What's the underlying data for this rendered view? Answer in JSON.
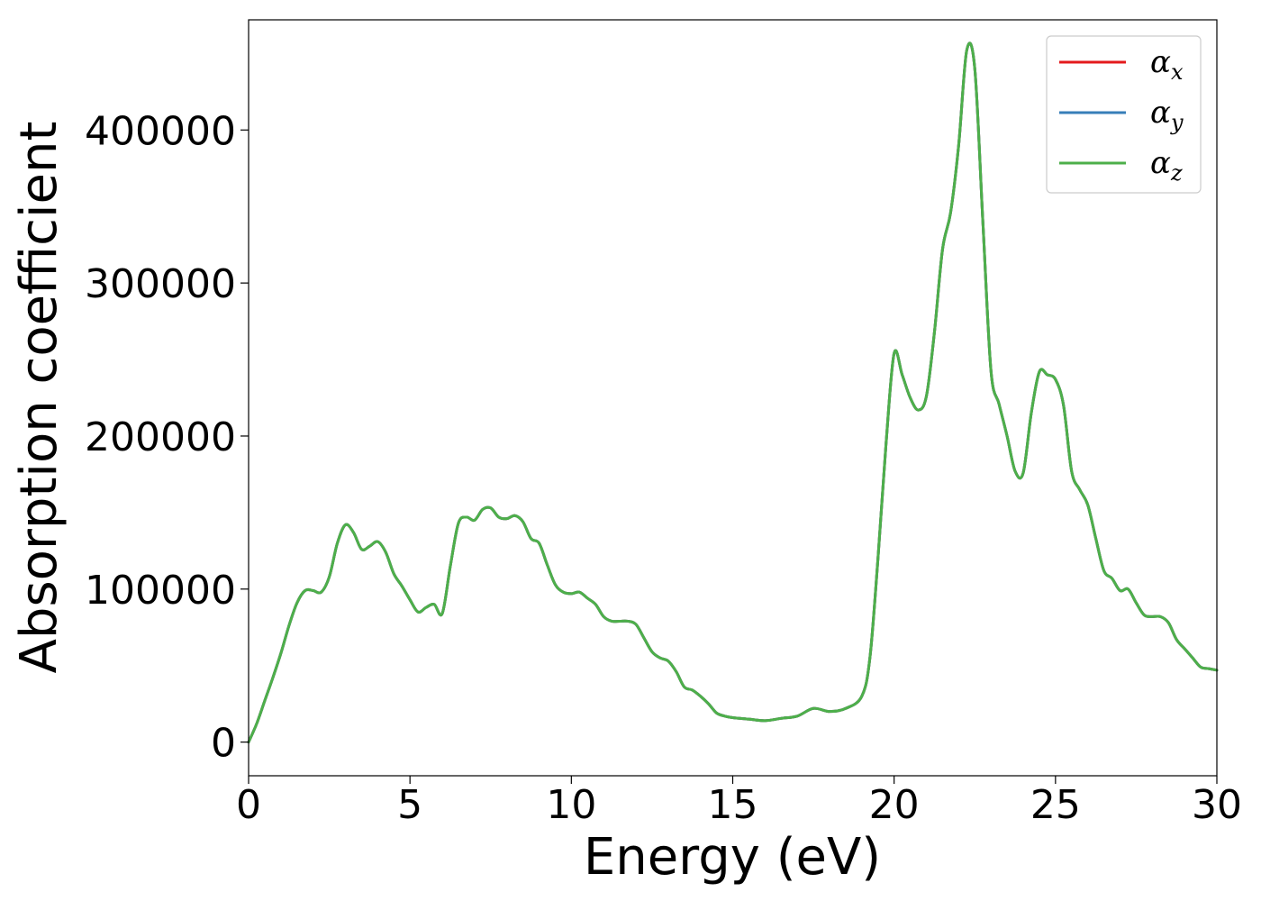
{
  "chart_data": {
    "type": "line",
    "title": "",
    "xlabel": "Energy (eV)",
    "ylabel": "Absorption coefficient",
    "xlim": [
      0,
      30
    ],
    "ylim": [
      -22000,
      472000
    ],
    "xticks": [
      0,
      5,
      10,
      15,
      20,
      25,
      30
    ],
    "xtick_labels": [
      "0",
      "5",
      "10",
      "15",
      "20",
      "25",
      "30"
    ],
    "yticks": [
      0,
      100000,
      200000,
      300000,
      400000
    ],
    "ytick_labels": [
      "0",
      "100000",
      "200000",
      "300000",
      "400000"
    ],
    "grid": false,
    "legend_position": "top-right",
    "x": [
      0,
      0.25,
      0.5,
      0.75,
      1.0,
      1.25,
      1.5,
      1.75,
      2.0,
      2.25,
      2.5,
      2.75,
      3.0,
      3.25,
      3.5,
      3.75,
      4.0,
      4.25,
      4.5,
      4.75,
      5.0,
      5.25,
      5.5,
      5.75,
      6.0,
      6.25,
      6.5,
      6.75,
      7.0,
      7.25,
      7.5,
      7.75,
      8.0,
      8.25,
      8.5,
      8.75,
      9.0,
      9.25,
      9.5,
      9.75,
      10.0,
      10.25,
      10.5,
      10.75,
      11.0,
      11.25,
      11.5,
      11.75,
      12.0,
      12.25,
      12.5,
      12.75,
      13.0,
      13.25,
      13.5,
      13.75,
      14.0,
      14.25,
      14.5,
      14.75,
      15.0,
      15.5,
      16.0,
      16.5,
      17.0,
      17.5,
      18.0,
      18.5,
      19.0,
      19.25,
      19.5,
      19.75,
      20.0,
      20.25,
      20.5,
      20.75,
      21.0,
      21.25,
      21.5,
      21.75,
      22.0,
      22.25,
      22.5,
      22.75,
      23.0,
      23.25,
      23.5,
      23.75,
      24.0,
      24.25,
      24.5,
      24.75,
      25.0,
      25.25,
      25.5,
      25.75,
      26.0,
      26.25,
      26.5,
      26.75,
      27.0,
      27.25,
      27.5,
      27.75,
      28.0,
      28.25,
      28.5,
      28.75,
      29.0,
      29.25,
      29.5,
      29.75,
      30.0
    ],
    "series": [
      {
        "name": "α_x",
        "color": "#e41a1c",
        "values": [
          0,
          12000,
          27000,
          42000,
          58000,
          76000,
          91000,
          99000,
          99000,
          98000,
          108000,
          130000,
          142000,
          137000,
          126000,
          128000,
          131000,
          124000,
          110000,
          102000,
          93000,
          85000,
          88000,
          90000,
          84000,
          115000,
          143000,
          147000,
          145000,
          152000,
          153000,
          147000,
          146000,
          148000,
          144000,
          133000,
          130000,
          116000,
          103000,
          98000,
          97000,
          98000,
          94000,
          90000,
          82000,
          79000,
          79000,
          79000,
          77000,
          68000,
          59000,
          55000,
          53000,
          46000,
          36000,
          34000,
          30000,
          25000,
          19000,
          17000,
          16000,
          15000,
          14000,
          15500,
          17000,
          22000,
          20000,
          22000,
          30000,
          55000,
          120000,
          195000,
          254000,
          240000,
          225000,
          217000,
          226000,
          268000,
          322000,
          346000,
          390000,
          452000,
          440000,
          340000,
          243000,
          221000,
          200000,
          177000,
          176000,
          215000,
          242000,
          240000,
          237000,
          220000,
          177000,
          165000,
          155000,
          133000,
          112000,
          107000,
          99000,
          100000,
          91000,
          83000,
          82000,
          82000,
          78000,
          67000,
          61000,
          55000,
          49000,
          48000,
          47000
        ]
      },
      {
        "name": "α_y",
        "color": "#377eb8",
        "values": [
          0,
          12000,
          27000,
          42000,
          58000,
          76000,
          91000,
          99000,
          99000,
          98000,
          108000,
          130000,
          142000,
          137000,
          126000,
          128000,
          131000,
          124000,
          110000,
          102000,
          93000,
          85000,
          88000,
          90000,
          84000,
          115000,
          143000,
          147000,
          145000,
          152000,
          153000,
          147000,
          146000,
          148000,
          144000,
          133000,
          130000,
          116000,
          103000,
          98000,
          97000,
          98000,
          94000,
          90000,
          82000,
          79000,
          79000,
          79000,
          77000,
          68000,
          59000,
          55000,
          53000,
          46000,
          36000,
          34000,
          30000,
          25000,
          19000,
          17000,
          16000,
          15000,
          14000,
          15500,
          17000,
          22000,
          20000,
          22000,
          30000,
          55000,
          120000,
          195000,
          254000,
          240000,
          225000,
          217000,
          226000,
          268000,
          322000,
          346000,
          390000,
          452000,
          440000,
          340000,
          243000,
          221000,
          200000,
          177000,
          176000,
          215000,
          242000,
          240000,
          237000,
          220000,
          177000,
          165000,
          155000,
          133000,
          112000,
          107000,
          99000,
          100000,
          91000,
          83000,
          82000,
          82000,
          78000,
          67000,
          61000,
          55000,
          49000,
          48000,
          47000
        ]
      },
      {
        "name": "α_z",
        "color": "#4daf4a",
        "values": [
          0,
          12000,
          27000,
          42000,
          58000,
          76000,
          91000,
          99000,
          99000,
          98000,
          108000,
          130000,
          142000,
          137000,
          126000,
          128000,
          131000,
          124000,
          110000,
          102000,
          93000,
          85000,
          88000,
          90000,
          84000,
          115000,
          143000,
          147000,
          145000,
          152000,
          153000,
          147000,
          146000,
          148000,
          144000,
          133000,
          130000,
          116000,
          103000,
          98000,
          97000,
          98000,
          94000,
          90000,
          82000,
          79000,
          79000,
          79000,
          77000,
          68000,
          59000,
          55000,
          53000,
          46000,
          36000,
          34000,
          30000,
          25000,
          19000,
          17000,
          16000,
          15000,
          14000,
          15500,
          17000,
          22000,
          20000,
          22000,
          30000,
          55000,
          120000,
          195000,
          254000,
          240000,
          225000,
          217000,
          226000,
          268000,
          322000,
          346000,
          390000,
          452000,
          440000,
          340000,
          243000,
          221000,
          200000,
          177000,
          176000,
          215000,
          242000,
          240000,
          237000,
          220000,
          177000,
          165000,
          155000,
          133000,
          112000,
          107000,
          99000,
          100000,
          91000,
          83000,
          82000,
          82000,
          78000,
          67000,
          61000,
          55000,
          49000,
          48000,
          47000
        ]
      }
    ],
    "legend": [
      {
        "symbol": "α",
        "subscript": "x",
        "color": "#e41a1c"
      },
      {
        "symbol": "α",
        "subscript": "y",
        "color": "#377eb8"
      },
      {
        "symbol": "α",
        "subscript": "z",
        "color": "#4daf4a"
      }
    ]
  }
}
